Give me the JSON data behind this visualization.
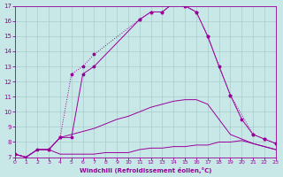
{
  "xlabel": "Windchill (Refroidissement éolien,°C)",
  "xlim": [
    0,
    23
  ],
  "ylim": [
    7,
    17
  ],
  "xticks": [
    0,
    1,
    2,
    3,
    4,
    5,
    6,
    7,
    8,
    9,
    10,
    11,
    12,
    13,
    14,
    15,
    16,
    17,
    18,
    19,
    20,
    21,
    22,
    23
  ],
  "yticks": [
    7,
    8,
    9,
    10,
    11,
    12,
    13,
    14,
    15,
    16,
    17
  ],
  "bg_color": "#c8e8e8",
  "line_color": "#990099",
  "grid_color": "#aacccc",
  "curve_dotted_marker": {
    "x": [
      3,
      4,
      5,
      6,
      7,
      11,
      12,
      13,
      14,
      15,
      16,
      17,
      19,
      21,
      22,
      23
    ],
    "y": [
      7.5,
      8.3,
      12.5,
      13.0,
      13.8,
      16.1,
      16.6,
      16.6,
      17.2,
      17.0,
      16.6,
      15.0,
      11.1,
      8.5,
      8.2,
      7.9
    ],
    "style": "dotted",
    "marker": true
  },
  "curve_solid_marker": {
    "x": [
      0,
      1,
      2,
      3,
      4,
      5,
      6,
      7,
      11,
      12,
      13,
      14,
      15,
      16,
      17,
      18,
      19,
      20,
      21,
      22,
      23
    ],
    "y": [
      7.2,
      7.0,
      7.5,
      7.5,
      8.3,
      8.3,
      12.5,
      13.0,
      16.1,
      16.6,
      16.6,
      17.2,
      17.0,
      16.6,
      15.0,
      13.0,
      11.1,
      9.5,
      8.5,
      8.2,
      7.9
    ],
    "style": "solid",
    "marker": true
  },
  "curve_mid": {
    "x": [
      0,
      1,
      2,
      3,
      4,
      5,
      6,
      7,
      8,
      9,
      10,
      11,
      12,
      13,
      14,
      15,
      16,
      17,
      18,
      19,
      20,
      21,
      22,
      23
    ],
    "y": [
      7.2,
      7.0,
      7.5,
      7.5,
      8.3,
      8.5,
      8.7,
      8.9,
      9.2,
      9.5,
      9.7,
      10.0,
      10.3,
      10.5,
      10.7,
      10.8,
      10.8,
      10.5,
      9.5,
      8.5,
      8.2,
      7.9,
      7.7,
      7.5
    ],
    "style": "solid",
    "marker": false
  },
  "curve_flat": {
    "x": [
      0,
      1,
      2,
      3,
      4,
      5,
      6,
      7,
      8,
      9,
      10,
      11,
      12,
      13,
      14,
      15,
      16,
      17,
      18,
      19,
      20,
      21,
      22,
      23
    ],
    "y": [
      7.2,
      7.0,
      7.5,
      7.5,
      7.2,
      7.2,
      7.2,
      7.2,
      7.3,
      7.3,
      7.3,
      7.5,
      7.6,
      7.6,
      7.7,
      7.7,
      7.8,
      7.8,
      8.0,
      8.0,
      8.1,
      7.9,
      7.7,
      7.5
    ],
    "style": "solid",
    "marker": false
  }
}
